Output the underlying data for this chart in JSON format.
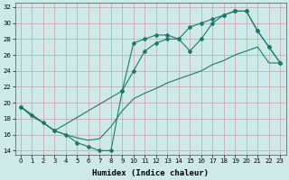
{
  "xlabel": "Humidex (Indice chaleur)",
  "xlim": [
    -0.5,
    23.5
  ],
  "ylim": [
    13.5,
    32.5
  ],
  "xticks": [
    0,
    1,
    2,
    3,
    4,
    5,
    6,
    7,
    8,
    9,
    10,
    11,
    12,
    13,
    14,
    15,
    16,
    17,
    18,
    19,
    20,
    21,
    22,
    23
  ],
  "yticks": [
    14,
    16,
    18,
    20,
    22,
    24,
    26,
    28,
    30,
    32
  ],
  "bg_color": "#ceeae8",
  "line_color": "#1a7a6e",
  "grid_color": "#c8a0a8",
  "line1_x": [
    0,
    1,
    2,
    3,
    4,
    5,
    6,
    7,
    8,
    9,
    10,
    11,
    12,
    13,
    14,
    15,
    16,
    17,
    18,
    19,
    20,
    21,
    22,
    23
  ],
  "line1_y": [
    19.5,
    18.5,
    17.5,
    16.5,
    16.0,
    15.0,
    14.5,
    14.0,
    14.0,
    21.5,
    27.5,
    28.0,
    28.5,
    28.5,
    28.0,
    26.5,
    28.0,
    30.0,
    31.0,
    31.5,
    31.5,
    29.0,
    27.0,
    25.0
  ],
  "line2_x": [
    0,
    3,
    9,
    10,
    11,
    12,
    13,
    14,
    15,
    16,
    17,
    18,
    19,
    20,
    21,
    22,
    23
  ],
  "line2_y": [
    19.5,
    16.5,
    21.5,
    24.0,
    26.5,
    27.5,
    28.0,
    28.0,
    29.5,
    30.0,
    30.5,
    31.0,
    31.5,
    31.5,
    29.0,
    27.0,
    25.0
  ],
  "line3_x": [
    0,
    1,
    2,
    3,
    4,
    5,
    6,
    7,
    8,
    9,
    10,
    11,
    12,
    13,
    14,
    15,
    16,
    17,
    18,
    19,
    20,
    21,
    22,
    23
  ],
  "line3_y": [
    19.5,
    18.3,
    17.5,
    16.5,
    16.0,
    15.6,
    15.3,
    15.5,
    17.0,
    19.0,
    20.5,
    21.2,
    21.8,
    22.5,
    23.0,
    23.5,
    24.0,
    24.8,
    25.3,
    26.0,
    26.5,
    27.0,
    25.0,
    25.0
  ]
}
